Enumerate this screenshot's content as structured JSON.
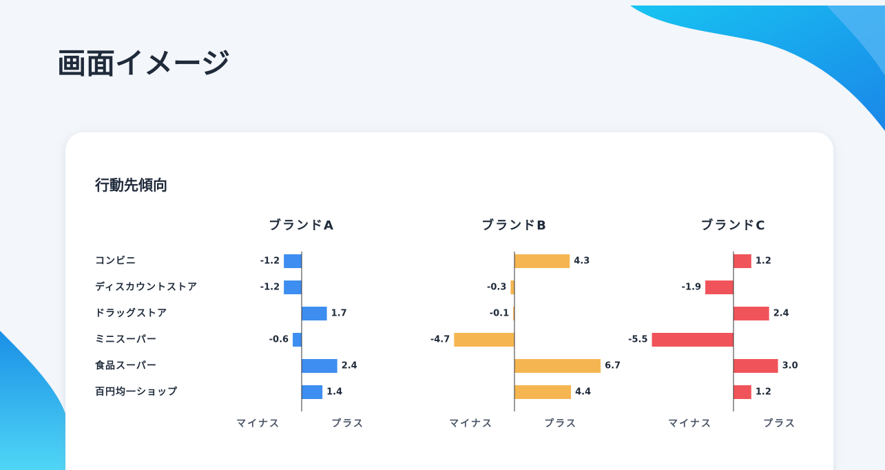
{
  "page_title": "画面イメージ",
  "card_title": "行動先傾向",
  "chart_data": [
    {
      "type": "bar",
      "orientation": "horizontal",
      "title": "ブランドA",
      "categories": [
        "コンビニ",
        "ディスカウントストア",
        "ドラッグストア",
        "ミニスーパー",
        "食品スーパー",
        "百円均一ショップ"
      ],
      "values": [
        -1.2,
        -1.2,
        1.7,
        -0.6,
        2.4,
        1.4
      ],
      "value_labels": [
        "-1.2",
        "-1.2",
        "1.7",
        "-0.6",
        "2.4",
        "1.4"
      ],
      "color": "#3d8ef0",
      "xlim": [
        -6.5,
        6.5
      ],
      "axis_labels": [
        "マイナス",
        "プラス"
      ]
    },
    {
      "type": "bar",
      "orientation": "horizontal",
      "title": "ブランドB",
      "values": [
        4.3,
        -0.3,
        -0.1,
        -4.7,
        6.7,
        4.4
      ],
      "value_labels": [
        "4.3",
        "-0.3",
        "-0.1",
        "-4.7",
        "6.7",
        "4.4"
      ],
      "color": "#f5b652",
      "xlim": [
        -7.5,
        7.5
      ],
      "axis_labels": [
        "マイナス",
        "プラス"
      ]
    },
    {
      "type": "bar",
      "orientation": "horizontal",
      "title": "ブランドC",
      "values": [
        1.2,
        -1.9,
        2.4,
        -5.5,
        3.0,
        1.2
      ],
      "value_labels": [
        "1.2",
        "-1.9",
        "2.4",
        "-5.5",
        "3.0",
        "1.2"
      ],
      "color": "#f0545a",
      "xlim": [
        -6.5,
        6.5
      ],
      "axis_labels": [
        "マイナス",
        "プラス"
      ]
    }
  ]
}
